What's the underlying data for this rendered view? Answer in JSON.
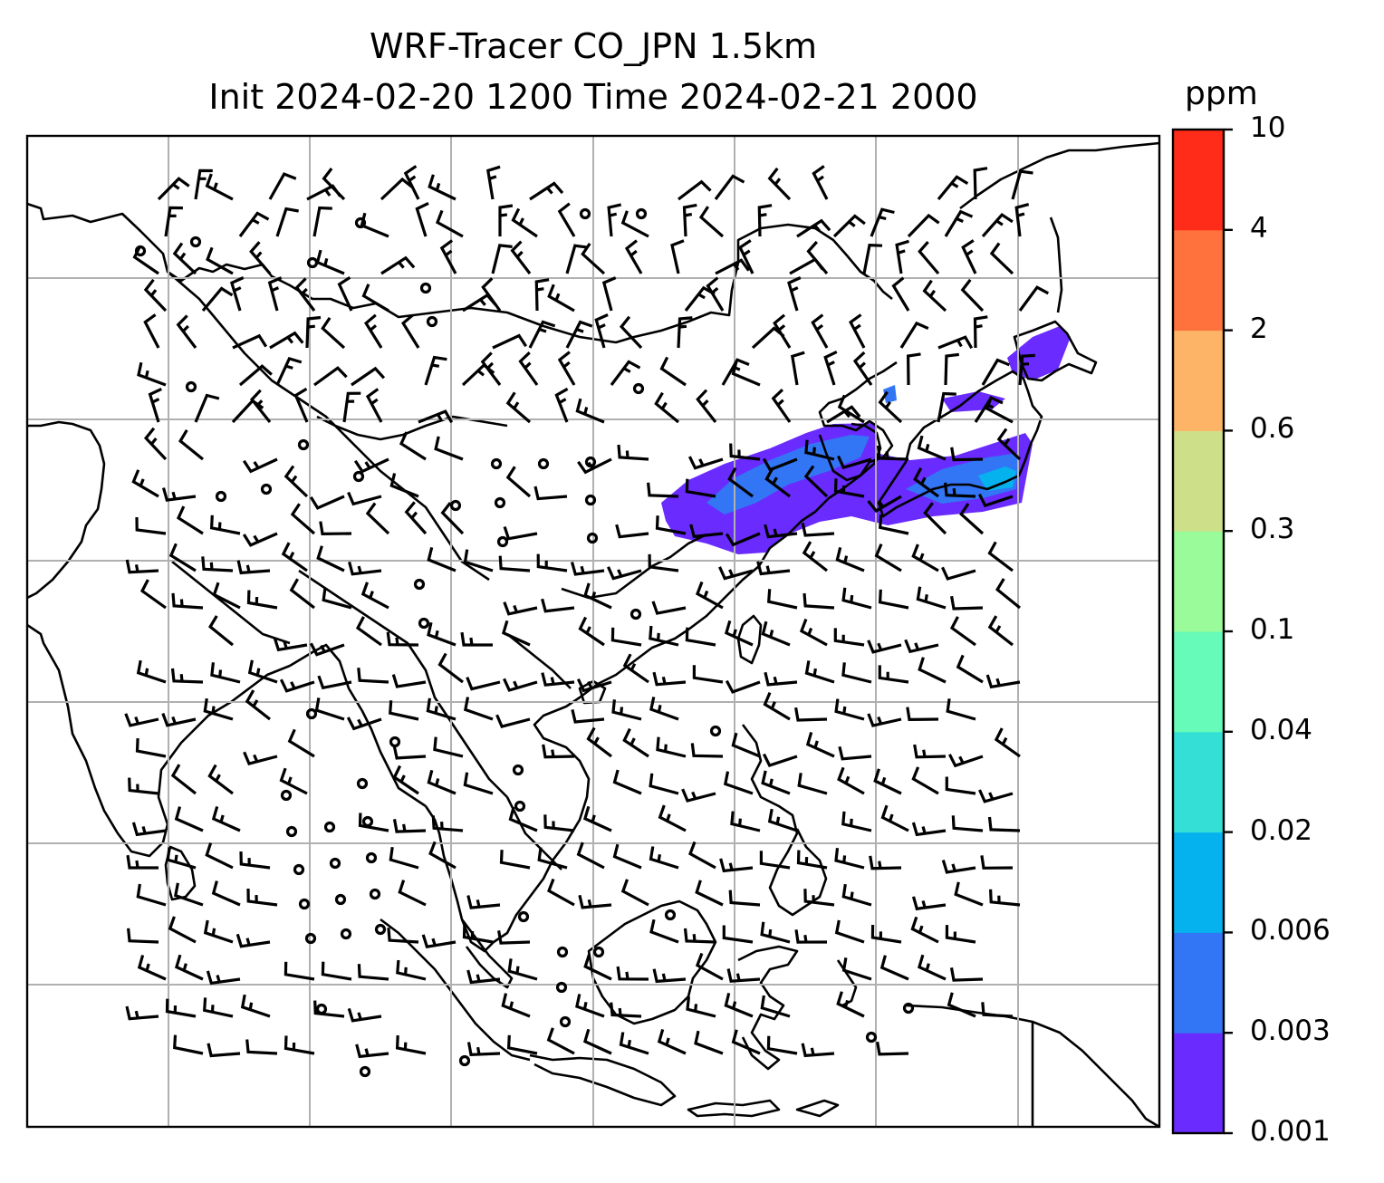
{
  "title_line1": "WRF-Tracer CO_JPN 1.5km",
  "title_line2": "Init 2024-02-20 1200 Time 2024-02-21 2000",
  "colorbar": {
    "units": "ppm",
    "levels": [
      "0.001",
      "0.003",
      "0.006",
      "0.02",
      "0.04",
      "0.1",
      "0.3",
      "0.6",
      "2",
      "4",
      "10"
    ],
    "colors": [
      "#6a2bff",
      "#3276f5",
      "#05b2ee",
      "#34e0d6",
      "#66fbb8",
      "#99fb99",
      "#cde089",
      "#fdb466",
      "#ff723d",
      "#ff2c19"
    ]
  },
  "map": {
    "features": [
      "coastlines",
      "wind-barbs",
      "gridlines",
      "co-tracer-plume"
    ],
    "plume_color_main": "#6a2bff",
    "plume_color_core": "#3276f5",
    "plume_color_peak": "#05b2ee",
    "grid_color": "#b0b0b0"
  }
}
